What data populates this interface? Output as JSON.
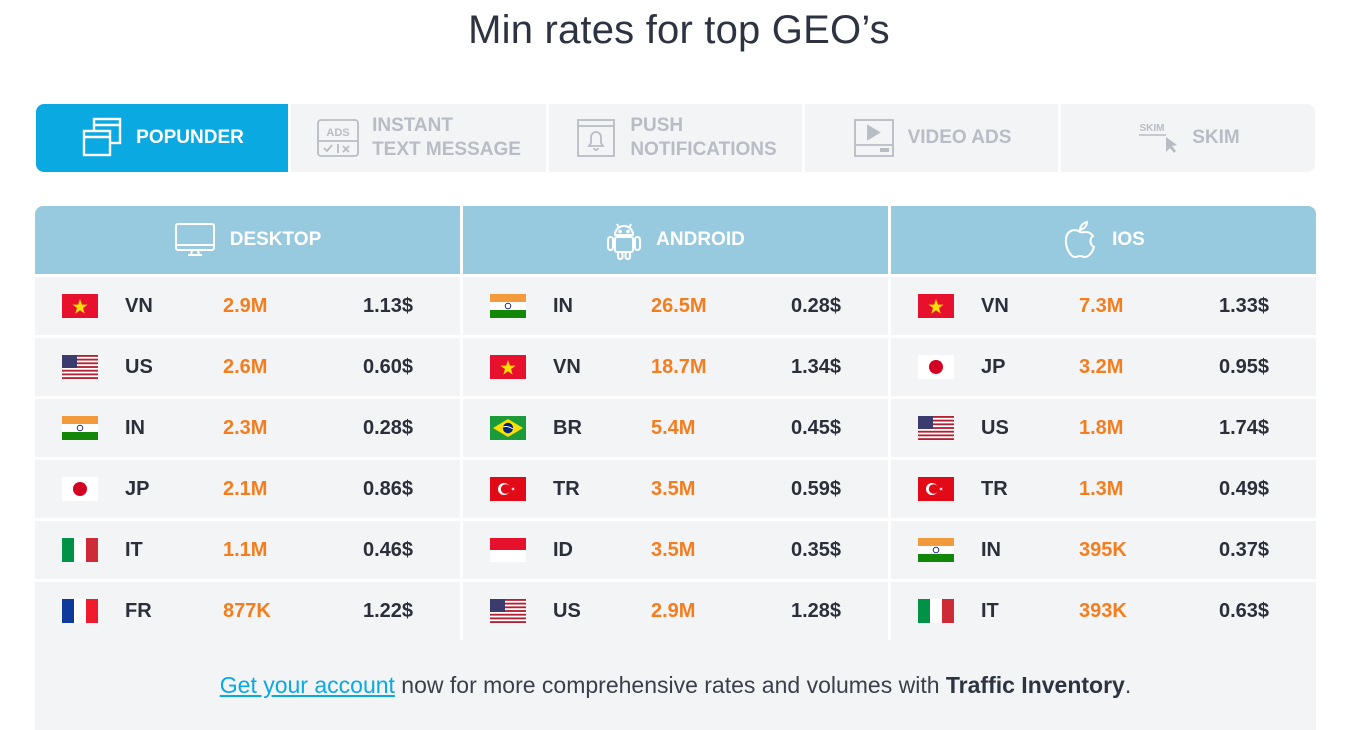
{
  "title": "Min rates for top GEO’s",
  "tabs": [
    {
      "label": "POPUNDER",
      "icon": "windows-icon",
      "active": true
    },
    {
      "label": "INSTANT\nTEXT MESSAGE",
      "icon": "ads-message-icon",
      "icon_text": "ADS"
    },
    {
      "label": "PUSH\nNOTIFICATIONS",
      "icon": "bell-notification-icon"
    },
    {
      "label": "VIDEO ADS",
      "icon": "video-player-icon"
    },
    {
      "label": "SKIM",
      "icon": "skim-cursor-icon",
      "icon_text": "SKIM"
    }
  ],
  "platforms": [
    {
      "name": "DESKTOP",
      "icon": "monitor-icon",
      "rows": [
        {
          "flag": "vn",
          "code": "VN",
          "volume": "2.9M",
          "rate": "1.13$"
        },
        {
          "flag": "us",
          "code": "US",
          "volume": "2.6M",
          "rate": "0.60$"
        },
        {
          "flag": "in",
          "code": "IN",
          "volume": "2.3M",
          "rate": "0.28$"
        },
        {
          "flag": "jp",
          "code": "JP",
          "volume": "2.1M",
          "rate": "0.86$"
        },
        {
          "flag": "it",
          "code": "IT",
          "volume": "1.1M",
          "rate": "0.46$"
        },
        {
          "flag": "fr",
          "code": "FR",
          "volume": "877K",
          "rate": "1.22$"
        }
      ]
    },
    {
      "name": "ANDROID",
      "icon": "android-icon",
      "rows": [
        {
          "flag": "in",
          "code": "IN",
          "volume": "26.5M",
          "rate": "0.28$"
        },
        {
          "flag": "vn",
          "code": "VN",
          "volume": "18.7M",
          "rate": "1.34$"
        },
        {
          "flag": "br",
          "code": "BR",
          "volume": "5.4M",
          "rate": "0.45$"
        },
        {
          "flag": "tr",
          "code": "TR",
          "volume": "3.5M",
          "rate": "0.59$"
        },
        {
          "flag": "id",
          "code": "ID",
          "volume": "3.5M",
          "rate": "0.35$"
        },
        {
          "flag": "us",
          "code": "US",
          "volume": "2.9M",
          "rate": "1.28$"
        }
      ]
    },
    {
      "name": "IOS",
      "icon": "apple-icon",
      "rows": [
        {
          "flag": "vn",
          "code": "VN",
          "volume": "7.3M",
          "rate": "1.33$"
        },
        {
          "flag": "jp",
          "code": "JP",
          "volume": "3.2M",
          "rate": "0.95$"
        },
        {
          "flag": "us",
          "code": "US",
          "volume": "1.8M",
          "rate": "1.74$"
        },
        {
          "flag": "tr",
          "code": "TR",
          "volume": "1.3M",
          "rate": "0.49$"
        },
        {
          "flag": "in",
          "code": "IN",
          "volume": "395K",
          "rate": "0.37$"
        },
        {
          "flag": "it",
          "code": "IT",
          "volume": "393K",
          "rate": "0.63$"
        }
      ]
    }
  ],
  "footer": {
    "link_text": "Get your account",
    "middle_text": " now for more comprehensive rates and volumes with ",
    "bold_text": "Traffic Inventory",
    "end_text": "."
  },
  "colors": {
    "accent": "#0aa9e2",
    "header_bg": "#97cade",
    "volume": "#f47d1e",
    "row_bg": "#f3f4f6"
  }
}
